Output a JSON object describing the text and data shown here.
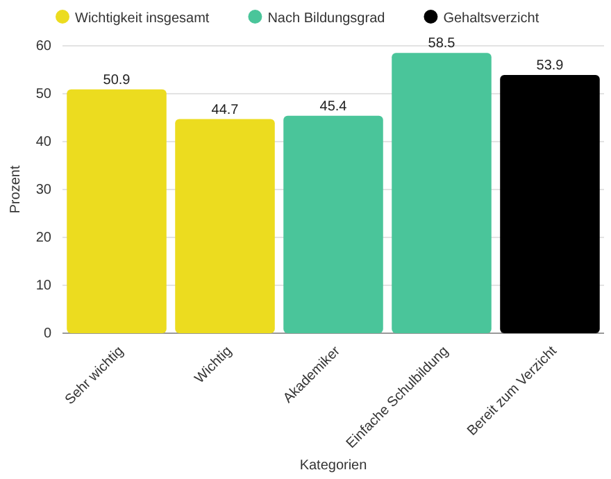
{
  "chart_data": {
    "type": "bar",
    "xlabel": "Kategorien",
    "ylabel": "Prozent",
    "categories": [
      "Sehr wichtig",
      "Wichtig",
      "Akademiker",
      "Einfache Schulbildung",
      "Bereit zum Verzicht"
    ],
    "series": [
      {
        "name": "Wichtigkeit insgesamt",
        "color": "#ecdc1f",
        "values": [
          50.9,
          44.7,
          null,
          null,
          null
        ]
      },
      {
        "name": "Nach Bildungsgrad",
        "color": "#4ac59a",
        "values": [
          null,
          null,
          45.4,
          58.5,
          null
        ]
      },
      {
        "name": "Gehaltsverzicht",
        "color": "#000000",
        "values": [
          null,
          null,
          null,
          null,
          53.9
        ]
      }
    ],
    "stacked": true,
    "ylim": [
      0,
      60
    ],
    "yticks": [
      0,
      10,
      20,
      30,
      40,
      50,
      60
    ],
    "grid": "y",
    "legend": "top left",
    "data_labels": true
  }
}
